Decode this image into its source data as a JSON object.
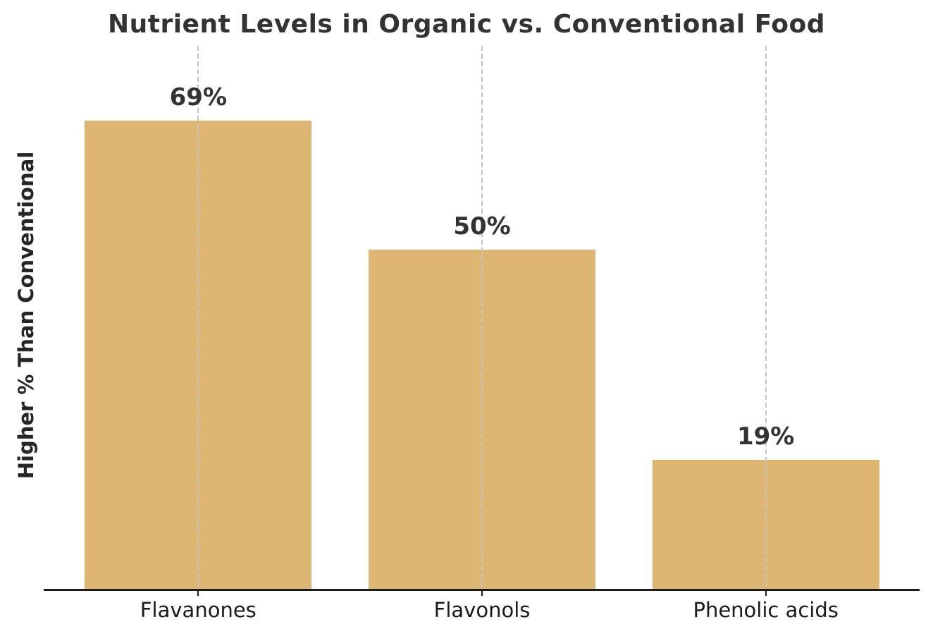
{
  "figure": {
    "background_color": "#ffffff"
  },
  "chart_data": {
    "type": "bar",
    "title": "Nutrient Levels in Organic vs. Conventional Food",
    "xlabel": "",
    "ylabel": "Higher % Than Conventional",
    "categories": [
      "Flavanones",
      "Flavonols",
      "Phenolic acids"
    ],
    "values": [
      69,
      50,
      19
    ],
    "value_labels": [
      "69%",
      "50%",
      "19%"
    ],
    "ylim": [
      0,
      80
    ],
    "bar_color": "#deb673",
    "grid": "vertical dashed gridlines at each bar center, drawn over bars",
    "gridline_color": "#c4c4c4",
    "axis_line_color": "#1c1c1c",
    "title_color": "#333333",
    "value_label_color": "#333333",
    "tick_label_color": "#1a1a1a",
    "legend_position": "none",
    "y_tick_labels_visible": false,
    "spines_visible": [
      "bottom"
    ]
  }
}
